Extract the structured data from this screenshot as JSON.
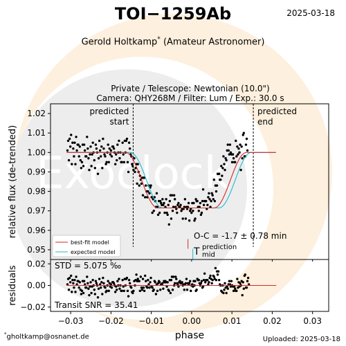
{
  "header": {
    "title": "TOI−1259Ab",
    "date": "2025-03-18",
    "observer_name": "Gerold Holtkamp",
    "observer_mark": "*",
    "observer_role": "(Amateur Astronomer)",
    "telescope": "Private / Telescope: Newtonian (10.0\")",
    "camera": "Camera: QHY268M / Filter: Lum / Exp.: 30.0 s"
  },
  "footer": {
    "email": "gholtkamp@osnanet.de",
    "email_mark": "*",
    "uploaded": "Uploaded: 2025-03-18"
  },
  "watermark": {
    "text": "Exoclock",
    "color": "#fde3c3"
  },
  "annotations": {
    "predicted_start": [
      "predicted",
      "start"
    ],
    "predicted_end": [
      "predicted",
      "end"
    ],
    "oc": "O-C = -1.7 ± 0.78 min",
    "t_symbol": "T",
    "t_sup": "prediction",
    "t_sub": "mid",
    "std": "STD = 5.075 ‰",
    "snr": "Transit SNR = 35.41"
  },
  "legend": {
    "placement": "lower-left",
    "entries": [
      {
        "label": "best-fit model",
        "color": "#d62728"
      },
      {
        "label": "expected model",
        "color": "#17becf"
      }
    ]
  },
  "chart_data": [
    {
      "type": "scatter",
      "xlabel": "",
      "ylabel": "relative flux (de-trended)",
      "xlim": [
        -0.035,
        0.034
      ],
      "ylim": [
        0.945,
        1.025
      ],
      "xticks": [
        -0.03,
        -0.02,
        -0.01,
        0.0,
        0.01,
        0.02,
        0.03
      ],
      "yticks": [
        0.95,
        0.96,
        0.97,
        0.98,
        0.99,
        1.0,
        1.01,
        1.02
      ],
      "ytick_labels": [
        "0.95",
        "0.96",
        "0.97",
        "0.98",
        "0.99",
        "1.00",
        "1.01",
        "1.02"
      ],
      "grid": false,
      "predicted_start": -0.0145,
      "predicted_end": 0.0153,
      "t_mid_prediction": 0.0003,
      "t_mid_fit": -0.0009,
      "model": {
        "depth": 0.0285,
        "ingress_start": -0.0155,
        "ingress_end": -0.0075,
        "egress_start": 0.0065,
        "egress_end": 0.0145
      },
      "series": [
        {
          "name": "best-fit model",
          "color": "#d62728",
          "type": "line"
        },
        {
          "name": "expected model",
          "color": "#17becf",
          "type": "line"
        }
      ],
      "points": {
        "x_start": -0.0308,
        "x_step": 0.00018,
        "y": [
          1.001,
          1.006,
          0.996,
          1.007,
          1.003,
          1.009,
          0.994,
          1.005,
          1.002,
          0.998,
          1.005,
          0.994,
          1.008,
          1.001,
          1.004,
          1.004,
          0.998,
          1.003,
          0.996,
          0.992,
          0.995,
          1.004,
          0.993,
          1.004,
          1.001,
          0.998,
          0.998,
          1.008,
          1.002,
          0.997,
          0.991,
          0.999,
          1.003,
          0.993,
          0.999,
          1.005,
          1.0,
          0.996,
          0.992,
          1.004,
          1.002,
          1.0,
          0.989,
          0.997,
          1.006,
          1.001,
          0.998,
          1.003,
          0.992,
          1.007,
          1.002,
          0.999,
          0.998,
          0.994,
          0.995,
          1.0,
          1.004,
          0.995,
          1.002,
          0.999,
          1.001,
          0.998,
          1.003,
          1.003,
          1.002,
          1.0,
          0.994,
          0.999,
          0.996,
          1.004,
          1.0,
          1.006,
          0.997,
          1.0,
          0.995,
          0.995,
          1.005,
          0.999,
          0.995,
          1.006,
          1.0,
          1.006,
          1.007,
          0.995,
          0.99,
          1.005,
          1.002,
          0.999,
          0.998,
          0.994,
          0.993,
          0.991,
          0.997,
          0.99,
          0.992,
          0.994,
          0.984,
          0.994,
          0.99,
          0.983,
          0.988,
          0.986,
          0.984,
          0.987,
          0.978,
          0.987,
          0.987,
          0.977,
          0.983,
          0.98,
          0.977,
          0.98,
          0.983,
          0.979,
          0.982,
          0.983,
          0.977,
          0.969,
          0.976,
          0.97,
          0.977,
          0.975,
          0.972,
          0.979,
          0.972,
          0.968,
          0.975,
          0.969,
          0.975,
          0.974,
          0.973,
          0.976,
          0.973,
          0.974,
          0.969,
          0.972,
          0.976,
          0.969,
          0.968,
          0.973,
          0.963,
          0.975,
          0.978,
          0.966,
          0.978,
          0.97,
          0.972,
          0.978,
          0.976,
          0.972,
          0.971,
          0.969,
          0.973,
          0.974,
          0.972,
          0.972,
          0.973,
          0.97,
          0.971,
          0.966,
          0.971,
          0.972,
          0.976,
          0.966,
          0.972,
          0.971,
          0.972,
          0.974,
          0.965,
          0.97,
          0.971,
          0.969,
          0.974,
          0.97,
          0.974,
          0.965,
          0.966,
          0.976,
          0.975,
          0.975,
          0.972,
          0.97,
          0.972,
          0.974,
          0.968,
          0.969,
          0.975,
          0.981,
          0.973,
          0.975,
          0.975,
          0.975,
          0.971,
          0.973,
          0.977,
          0.979,
          0.976,
          0.972,
          0.975,
          0.979,
          0.978,
          0.976,
          0.986,
          0.975,
          0.983,
          0.98,
          0.983,
          0.989,
          0.989,
          0.989,
          0.986,
          0.986,
          0.993,
          0.988,
          0.992,
          0.998,
          0.994,
          0.991,
          0.997,
          0.996,
          1.001,
          1.004,
          1.001,
          0.999,
          1.004,
          1.0,
          0.999,
          0.995,
          0.999,
          0.997,
          0.995,
          0.995,
          1.006,
          0.998,
          1.003,
          0.999,
          1.002,
          1.0,
          1.004,
          0.991,
          1.003,
          0.997,
          1.009,
          1.01,
          0.998,
          0.998,
          1.004,
          1.007,
          1.001
        ]
      }
    },
    {
      "type": "scatter",
      "xlabel": "phase",
      "ylabel": "residuals",
      "xlim": [
        -0.035,
        0.034
      ],
      "ylim": [
        -0.024,
        0.024
      ],
      "xticks": [
        -0.03,
        -0.02,
        -0.01,
        0.0,
        0.01,
        0.02,
        0.03
      ],
      "xtick_labels": [
        "−0.03",
        "−0.02",
        "−0.01",
        "0.00",
        "0.01",
        "0.02",
        "0.03"
      ],
      "yticks": [
        -0.02,
        0.0,
        0.02
      ],
      "ytick_labels": [
        "−0.02",
        "0.00",
        "0.02"
      ],
      "grid": false,
      "zero_line_color": "#d62728",
      "points": {
        "x_start": -0.0308,
        "x_step": 0.00018,
        "y": [
          0.001,
          0.006,
          -0.004,
          0.007,
          0.003,
          0.009,
          -0.006,
          0.005,
          0.002,
          -0.002,
          0.005,
          -0.006,
          0.008,
          0.001,
          0.004,
          0.004,
          -0.002,
          0.003,
          -0.004,
          -0.008,
          -0.005,
          0.004,
          -0.007,
          0.004,
          0.001,
          -0.002,
          -0.002,
          0.008,
          0.002,
          -0.003,
          -0.009,
          -0.001,
          0.003,
          -0.007,
          -0.001,
          0.005,
          0.0,
          -0.004,
          -0.008,
          0.004,
          0.002,
          0.0,
          -0.011,
          -0.003,
          0.006,
          0.001,
          -0.002,
          0.003,
          -0.008,
          0.007,
          0.002,
          -0.001,
          -0.002,
          -0.006,
          -0.005,
          0.0,
          0.004,
          -0.005,
          0.002,
          -0.001,
          0.001,
          -0.002,
          0.003,
          0.003,
          0.002,
          0.0,
          -0.006,
          -0.001,
          -0.004,
          0.004,
          0.0,
          0.006,
          -0.003,
          0.0,
          -0.005,
          -0.005,
          0.005,
          -0.001,
          -0.005,
          0.006,
          0.0,
          0.006,
          0.007,
          -0.005,
          -0.01,
          0.005,
          0.002,
          -0.001,
          -0.002,
          -0.006,
          -0.007,
          -0.005,
          0.004,
          -0.0,
          0.005,
          0.01,
          0.004,
          0.006,
          0.004,
          0.004,
          -0.005,
          0.008,
          -0.002,
          -0.004,
          0.006,
          -0.002,
          -0.005,
          0.009,
          0.004,
          -0.001,
          -0.002,
          0.005,
          0.001,
          -0.002,
          0.003,
          0.007,
          -0.001,
          -0.002,
          -0.005,
          -0.004,
          0.004,
          0.003,
          -0.008,
          0.001,
          -0.005,
          0.002,
          0.004,
          0.003,
          -0.004,
          0.001,
          0.001,
          0.002,
          -0.003,
          0.004,
          0.003,
          0.004,
          0.003,
          -0.001,
          0.003,
          -0.004,
          -0.005,
          0.005,
          -0.007,
          0.005,
          0.008,
          -0.004,
          0.008,
          -0.0,
          0.002,
          0.008,
          0.006,
          0.002,
          0.001,
          -0.001,
          0.003,
          0.004,
          0.002,
          0.002,
          0.003,
          -0.0,
          0.001,
          -0.004,
          0.001,
          0.002,
          0.006,
          -0.004,
          0.002,
          0.001,
          0.002,
          0.004,
          -0.005,
          -0.0,
          0.001,
          -0.001,
          0.004,
          -0.0,
          0.004,
          -0.005,
          -0.004,
          0.006,
          0.005,
          0.005,
          0.002,
          -0.0,
          0.002,
          0.004,
          -0.002,
          -0.001,
          0.005,
          0.011,
          0.003,
          0.005,
          0.005,
          0.005,
          0.001,
          0.003,
          0.007,
          0.009,
          0.006,
          0.002,
          0.005,
          0.009,
          0.008,
          0.006,
          0.016,
          0.005,
          0.013,
          0.01,
          0.013,
          0.005,
          0.001,
          -0.0,
          -0.005,
          -0.006,
          -0.0,
          -0.007,
          -0.004,
          0.002,
          -0.002,
          -0.007,
          -0.001,
          -0.003,
          0.001,
          0.004,
          0.001,
          -0.001,
          0.004,
          0.0,
          -0.001,
          -0.005,
          -0.001,
          -0.003,
          -0.005,
          -0.005,
          0.006,
          -0.002,
          0.003,
          -0.001,
          0.002,
          0.0,
          0.004,
          -0.009,
          0.003,
          -0.003,
          0.009,
          0.01,
          -0.002,
          -0.002,
          0.004,
          0.007,
          0.001
        ]
      }
    }
  ]
}
